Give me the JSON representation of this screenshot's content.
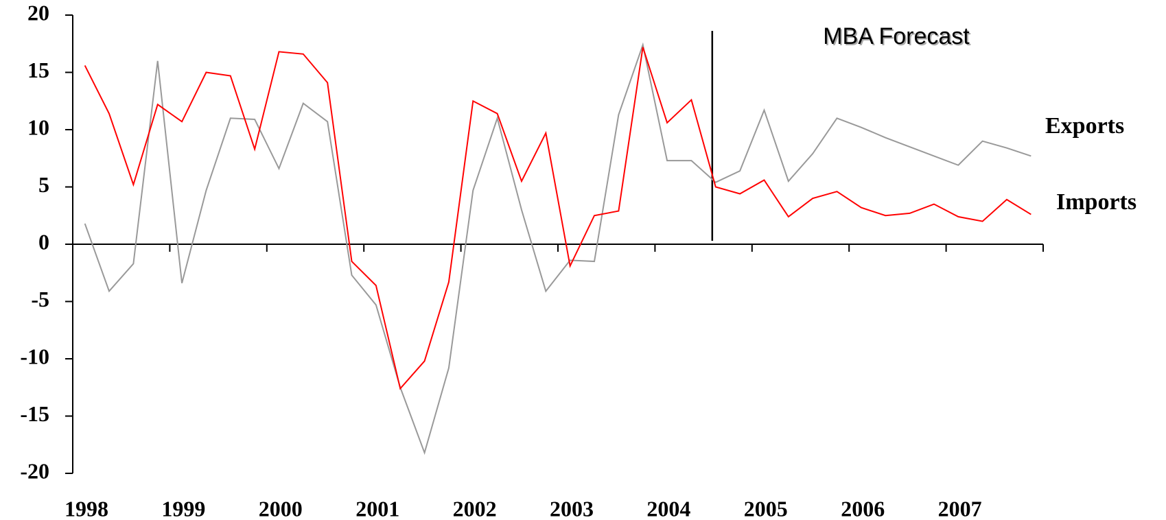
{
  "chart_data": {
    "type": "line",
    "x": [
      1998.125,
      1998.375,
      1998.625,
      1998.875,
      1999.125,
      1999.375,
      1999.625,
      1999.875,
      2000.125,
      2000.375,
      2000.625,
      2000.875,
      2001.125,
      2001.375,
      2001.625,
      2001.875,
      2002.125,
      2002.375,
      2002.625,
      2002.875,
      2003.125,
      2003.375,
      2003.625,
      2003.875,
      2004.125,
      2004.375,
      2004.625,
      2004.875,
      2005.125,
      2005.375,
      2005.625,
      2005.875,
      2006.125,
      2006.375,
      2006.625,
      2006.875,
      2007.125,
      2007.375,
      2007.625,
      2007.875
    ],
    "series": [
      {
        "name": "Exports",
        "color": "#999999",
        "values": [
          1.8,
          -4.1,
          -1.7,
          16.0,
          -3.4,
          4.7,
          11.0,
          10.9,
          6.6,
          12.3,
          10.7,
          -2.7,
          -5.3,
          -12.5,
          -18.2,
          -10.8,
          4.7,
          11.0,
          3.0,
          -4.1,
          -1.4,
          -1.5,
          11.3,
          17.4,
          7.3,
          7.3,
          5.4,
          6.4,
          11.7,
          5.5,
          7.9,
          11.0,
          10.2,
          9.3,
          8.5,
          7.7,
          6.9,
          9.0,
          8.4,
          7.7
        ]
      },
      {
        "name": "Imports",
        "color": "#ff0000",
        "values": [
          15.6,
          11.4,
          5.2,
          12.2,
          10.7,
          15.0,
          14.7,
          8.3,
          16.8,
          16.6,
          14.1,
          -1.5,
          -3.6,
          -12.6,
          -10.2,
          -3.3,
          12.5,
          11.4,
          5.5,
          9.7,
          -1.9,
          2.5,
          2.9,
          17.2,
          10.6,
          12.6,
          5.0,
          4.4,
          5.6,
          2.4,
          4.0,
          4.6,
          3.2,
          2.5,
          2.7,
          3.5,
          2.4,
          2.0,
          3.9,
          2.6
        ]
      }
    ],
    "xlim": [
      1998,
      2008
    ],
    "xticks": [
      1998,
      1999,
      2000,
      2001,
      2002,
      2003,
      2004,
      2005,
      2006,
      2007
    ],
    "ylim": [
      -20,
      20
    ],
    "yticks": [
      -20,
      -15,
      -10,
      -5,
      0,
      5,
      10,
      15,
      20
    ],
    "annotation": {
      "text": "MBA Forecast",
      "x": 2004.59
    }
  }
}
